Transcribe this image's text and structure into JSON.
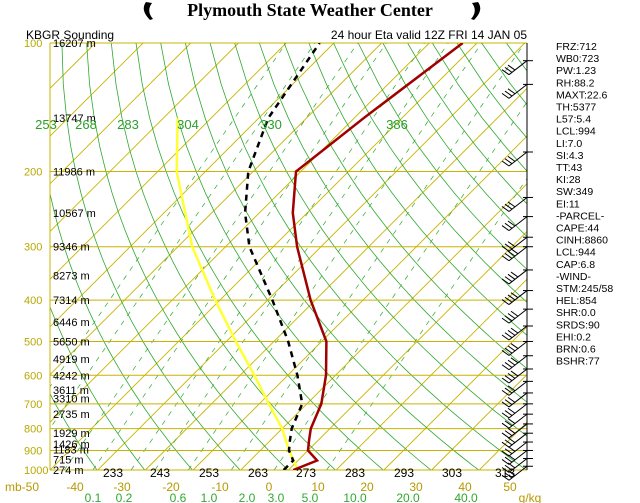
{
  "header": {
    "title": "Plymouth State Weather Center",
    "left_label": "KBGR Sounding",
    "right_label": "24 hour Eta valid 12Z FRI 14 JAN 05"
  },
  "colors": {
    "isobar": "#c8b400",
    "pressure_label": "#b8a800",
    "mixing_ratio": "#2fa82f",
    "theta": "#7ab800",
    "theta_label": "#2aa02a",
    "temperature_line": "#a00000",
    "dewpoint_line": "#000000",
    "parcel_line": "#ffff33",
    "bottom_text": "#b89800",
    "wind": "#000000"
  },
  "chart_data": {
    "type": "skew-t",
    "pressure_labels": [
      "100",
      "200",
      "300",
      "400",
      "500",
      "600",
      "700",
      "800",
      "900",
      "1000"
    ],
    "height_labels": [
      "16207 m",
      "13747 m",
      "11986 m",
      "10567 m",
      "9346 m",
      "8273 m",
      "7314 m",
      "6446 m",
      "5650 m",
      "4919 m",
      "4242 m",
      "3611 m",
      "3310 m",
      "2735 m",
      "1929 m",
      "1426 m",
      "1183 m",
      "715 m",
      "274 m"
    ],
    "theta_labels": [
      "253",
      "268",
      "283",
      "304",
      "330",
      "386"
    ],
    "bottom_temp_labels": [
      "233",
      "243",
      "253",
      "263",
      "273",
      "283",
      "293",
      "303",
      "313"
    ],
    "celsius_row": [
      "mb-50",
      "-40",
      "-30",
      "-20",
      "-10",
      "0",
      "10",
      "20",
      "30",
      "40",
      "50"
    ],
    "mixing_ratio_labels": [
      "0.1",
      "0.2",
      "0.6",
      "1.0",
      "2.0",
      "3.0",
      "5.0",
      "10.0",
      "20.0",
      "40.0",
      "g/kg"
    ],
    "temperature_profile": [
      {
        "p": 1000,
        "t": 1
      },
      {
        "p": 950,
        "t": 4
      },
      {
        "p": 900,
        "t": 0
      },
      {
        "p": 850,
        "t": -2
      },
      {
        "p": 800,
        "t": -4
      },
      {
        "p": 700,
        "t": -7
      },
      {
        "p": 600,
        "t": -12
      },
      {
        "p": 500,
        "t": -19
      },
      {
        "p": 400,
        "t": -31
      },
      {
        "p": 300,
        "t": -45
      },
      {
        "p": 250,
        "t": -53
      },
      {
        "p": 200,
        "t": -61
      },
      {
        "p": 150,
        "t": -58
      },
      {
        "p": 100,
        "t": -53
      }
    ],
    "dewpoint_profile": [
      {
        "p": 1000,
        "t": -1
      },
      {
        "p": 950,
        "t": -1
      },
      {
        "p": 900,
        "t": -4
      },
      {
        "p": 850,
        "t": -6
      },
      {
        "p": 800,
        "t": -8
      },
      {
        "p": 700,
        "t": -11
      },
      {
        "p": 600,
        "t": -18
      },
      {
        "p": 500,
        "t": -27
      },
      {
        "p": 400,
        "t": -39
      },
      {
        "p": 300,
        "t": -55
      },
      {
        "p": 250,
        "t": -63
      },
      {
        "p": 200,
        "t": -71
      },
      {
        "p": 150,
        "t": -78
      },
      {
        "p": 100,
        "t": -83
      }
    ],
    "parcel_profile": [
      {
        "p": 1000,
        "t": 2
      },
      {
        "p": 900,
        "t": -4
      },
      {
        "p": 800,
        "t": -10
      },
      {
        "p": 700,
        "t": -18
      },
      {
        "p": 600,
        "t": -27
      },
      {
        "p": 500,
        "t": -38
      },
      {
        "p": 400,
        "t": -51
      },
      {
        "p": 300,
        "t": -67
      },
      {
        "p": 200,
        "t": -86
      },
      {
        "p": 150,
        "t": -97
      }
    ],
    "p_range": [
      100,
      1000
    ],
    "t_range_at_base": [
      -50,
      50
    ]
  },
  "indices": [
    "FRZ:712",
    "WB0:723",
    "PW:1.23",
    "RH:88.2",
    "MAXT:22.6",
    "TH:5377",
    "L57:5.4",
    "LCL:994",
    "LI:7.0",
    "SI:4.3",
    "TT:43",
    "KI:28",
    "SW:349",
    "EI:11",
    "-PARCEL-",
    "CAPE:44",
    "CINH:8860",
    "LCL:944",
    "CAP:6.8",
    "-WIND-",
    "STM:245/58",
    "HEL:854",
    "SHR:0.0",
    "SRDS:90",
    "EHI:0.2",
    "BRN:0.6",
    "BSHR:77"
  ]
}
